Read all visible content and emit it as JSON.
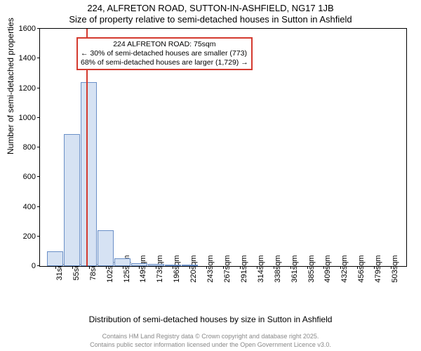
{
  "title_line1": "224, ALFRETON ROAD, SUTTON-IN-ASHFIELD, NG17 1JB",
  "title_line2": "Size of property relative to semi-detached houses in Sutton in Ashfield",
  "ylabel": "Number of semi-detached properties",
  "xlabel": "Distribution of semi-detached houses by size in Sutton in Ashfield",
  "footer_line1": "Contains HM Land Registry data © Crown copyright and database right 2025.",
  "footer_line2": "Contains public sector information licensed under the Open Government Licence v3.0.",
  "chart": {
    "type": "histogram",
    "ylim": [
      0,
      1600
    ],
    "yticks": [
      0,
      200,
      400,
      600,
      800,
      1000,
      1200,
      1400,
      1600
    ],
    "xcategories": [
      "31sqm",
      "55sqm",
      "78sqm",
      "102sqm",
      "125sqm",
      "149sqm",
      "173sqm",
      "196sqm",
      "220sqm",
      "243sqm",
      "267sqm",
      "291sqm",
      "314sqm",
      "338sqm",
      "361sqm",
      "385sqm",
      "409sqm",
      "432sqm",
      "456sqm",
      "479sqm",
      "503sqm"
    ],
    "values": [
      100,
      890,
      1240,
      240,
      50,
      20,
      15,
      10,
      10,
      0,
      0,
      0,
      0,
      0,
      0,
      0,
      0,
      0,
      0,
      0,
      0
    ],
    "bar_fill": "#d6e2f3",
    "bar_stroke": "#6a8fc7",
    "background": "#ffffff",
    "marker": {
      "sqm": 75,
      "color": "#d43a2f"
    },
    "annotation": {
      "border_color": "#d43a2f",
      "line1": "224 ALFRETON ROAD: 75sqm",
      "line2": "← 30% of semi-detached houses are smaller (773)",
      "line3": "68% of semi-detached houses are larger (1,729) →"
    }
  }
}
